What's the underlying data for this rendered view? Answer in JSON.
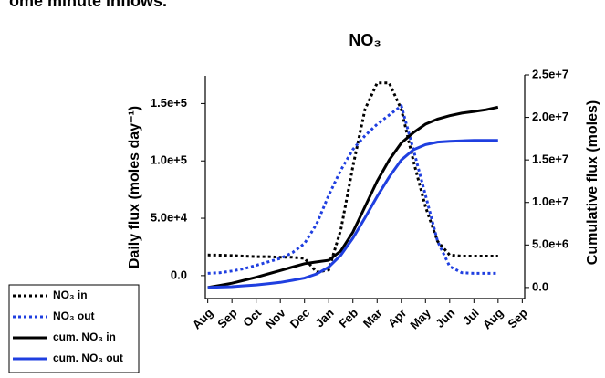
{
  "chart_data": {
    "type": "line",
    "caption": "ome minute inflows.",
    "title": "NO₃",
    "ylabel": "Daily flux (moles day⁻¹)",
    "y2label": "Cumulative flux (moles)",
    "x": [
      0,
      0.5,
      1,
      1.5,
      2,
      2.5,
      3,
      3.5,
      4,
      4.5,
      5,
      5.5,
      6,
      6.5,
      7,
      7.5,
      8,
      8.5,
      9,
      9.5,
      10,
      10.5,
      11,
      11.5,
      12
    ],
    "xlim": [
      -0.1,
      13.1
    ],
    "xticks": [
      {
        "value": 0,
        "label": "Aug"
      },
      {
        "value": 1,
        "label": "Sep"
      },
      {
        "value": 2,
        "label": "Oct"
      },
      {
        "value": 3,
        "label": "Nov"
      },
      {
        "value": 4,
        "label": "Dec"
      },
      {
        "value": 5,
        "label": "Jan"
      },
      {
        "value": 6,
        "label": "Feb"
      },
      {
        "value": 7,
        "label": "Mar"
      },
      {
        "value": 8,
        "label": "Apr"
      },
      {
        "value": 9,
        "label": "May"
      },
      {
        "value": 10,
        "label": "Jun"
      },
      {
        "value": 11,
        "label": "Jul"
      },
      {
        "value": 12,
        "label": "Aug"
      },
      {
        "value": 13,
        "label": "Sep"
      }
    ],
    "ylim": [
      -20000,
      175000
    ],
    "yticks": [
      {
        "value": 0,
        "label": "0.0"
      },
      {
        "value": 50000,
        "label": "5.0e+4"
      },
      {
        "value": 100000,
        "label": "1.0e+5"
      },
      {
        "value": 150000,
        "label": "1.5e+5"
      }
    ],
    "y2lim": [
      -1300000,
      25000000
    ],
    "y2ticks": [
      {
        "value": 0,
        "label": "0.0"
      },
      {
        "value": 5000000,
        "label": "5.0e+6"
      },
      {
        "value": 10000000,
        "label": "1.0e+7"
      },
      {
        "value": 15000000,
        "label": "1.5e+7"
      },
      {
        "value": 20000000,
        "label": "2.0e+7"
      },
      {
        "value": 25000000,
        "label": "2.5e+7"
      }
    ],
    "series": [
      {
        "name": "NO₃ in",
        "color": "#000000",
        "dash": "dotted",
        "values": [
          18000,
          17800,
          17500,
          17000,
          16500,
          16500,
          16000,
          16000,
          15000,
          3000,
          5000,
          40000,
          95000,
          145000,
          168000,
          168000,
          145000,
          100000,
          60000,
          30000,
          18000,
          17000,
          17000,
          17000,
          17000
        ]
      },
      {
        "name": "NO₃ out",
        "color": "#1f3fe0",
        "dash": "dotted",
        "values": [
          2000,
          2500,
          4000,
          6000,
          9000,
          12000,
          15000,
          20000,
          28000,
          45000,
          70000,
          92000,
          110000,
          122000,
          132000,
          140000,
          148000,
          110000,
          70000,
          30000,
          8000,
          2500,
          2000,
          2000,
          2000
        ]
      },
      {
        "name": "cum. NO₃ in",
        "color": "#000000",
        "dash": "solid",
        "axis": "y2",
        "values": [
          0,
          250000,
          500000,
          850000,
          1200000,
          1600000,
          2000000,
          2400000,
          2800000,
          3000000,
          3200000,
          4300000,
          6500000,
          9500000,
          12500000,
          15000000,
          17000000,
          18200000,
          19200000,
          19800000,
          20200000,
          20500000,
          20700000,
          20900000,
          21200000
        ]
      },
      {
        "name": "cum. NO₃ out",
        "color": "#1f3fe0",
        "dash": "solid",
        "axis": "y2",
        "values": [
          0,
          50000,
          100000,
          200000,
          300000,
          450000,
          600000,
          850000,
          1100000,
          1600000,
          2400000,
          3800000,
          5800000,
          8200000,
          10700000,
          13000000,
          15000000,
          16200000,
          16800000,
          17100000,
          17200000,
          17250000,
          17300000,
          17300000,
          17300000
        ]
      }
    ]
  }
}
